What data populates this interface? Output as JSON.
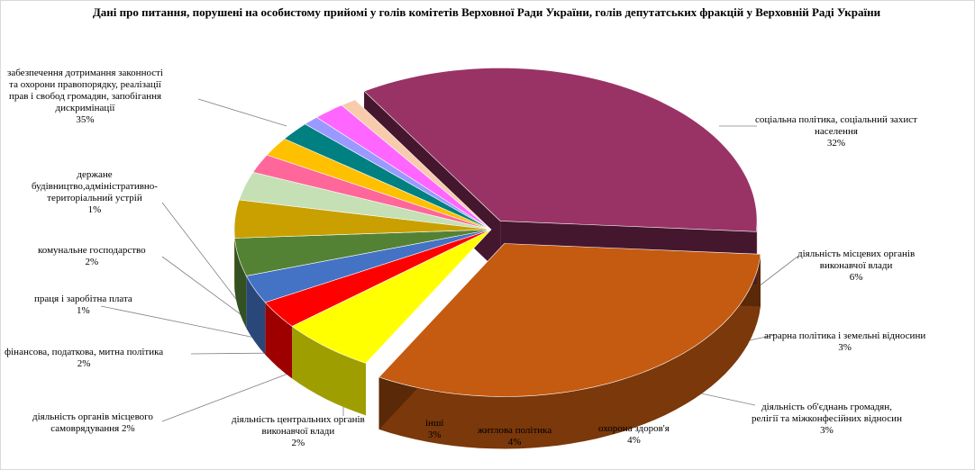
{
  "chart_data": {
    "type": "pie",
    "style": "3d-exploded",
    "title": "Дані про питання, порушені на особистому прийомі у голів комітетів Верховної Ради України, голів депутатських фракцій у Верховній Раді України",
    "slices": [
      {
        "label": "соціальна політика, соціальний захист населення",
        "value": 32,
        "display": "32%",
        "color": "#C55A11"
      },
      {
        "label": "діяльність місцевих органів виконавчої влади",
        "value": 6,
        "display": "6%",
        "color": "#FFFF00"
      },
      {
        "label": "аграрна політика і земельні відносини",
        "value": 3,
        "display": "3%",
        "color": "#FF0000"
      },
      {
        "label": "діяльність об'єднань громадян, релігії та міжконфесійних відносин",
        "value": 3,
        "display": "3%",
        "color": "#4472C4"
      },
      {
        "label": "охорона здоров'я",
        "value": 4,
        "display": "4%",
        "color": "#548235"
      },
      {
        "label": "житлова політика",
        "value": 4,
        "display": "4%",
        "color": "#C9A000"
      },
      {
        "label": "інші",
        "value": 3,
        "display": "3%",
        "color": "#C5E0B4"
      },
      {
        "label": "діяльність центральних органів виконавчої влади",
        "value": 2,
        "display": "2%",
        "color": "#FF6699"
      },
      {
        "label": "діяльність органів місцевого самоврядування",
        "value": 2,
        "display": "2%",
        "color": "#FFC000"
      },
      {
        "label": "фінансова, податкова, митна політика",
        "value": 2,
        "display": "2%",
        "color": "#008080"
      },
      {
        "label": "праця і заробітна плата",
        "value": 1,
        "display": "1%",
        "color": "#9999FF"
      },
      {
        "label": "комунальне господарство",
        "value": 2,
        "display": "2%",
        "color": "#FF66FF"
      },
      {
        "label": "державне будівництво,адміністративно-територіальний устрій",
        "value": 1,
        "display": "1%",
        "color": "#F8CBAD"
      },
      {
        "label": "забезпечення дотримання законності та охорони правопорядку, реалізації прав і свобод громадян, запобігання дискримінації",
        "value": 35,
        "display": "35%",
        "color": "#993366"
      }
    ]
  },
  "labels": {
    "social": {
      "l1": "соціальна політика, соціальний захист",
      "l2": "населення",
      "pct": "32%"
    },
    "local_exec": {
      "l1": "діяльність  місцевих органів",
      "l2": "виконавчої влади",
      "pct": "6%"
    },
    "agrarian": {
      "l1": "аграрна політика і земельні відносини",
      "pct": "3%"
    },
    "associations": {
      "l1": "діяльність  об'єднань громадян,",
      "l2": "релігії та міжконфесійних відносин",
      "pct": "3%"
    },
    "health": {
      "l1": "охорона здоров'я",
      "pct": "4%"
    },
    "housing": {
      "l1": "житлова політика",
      "pct": "4%"
    },
    "other": {
      "l1": "інші",
      "pct": "3%"
    },
    "central_exec": {
      "l1": "діяльність центральних органів",
      "l2": "виконавчої влади",
      "pct": "2%"
    },
    "self_gov": {
      "l1": "діяльність  органів місцевого",
      "l2": "самоврядування 2%"
    },
    "finance": {
      "l1": "фінансова, податкова, митна політика",
      "pct": "2%"
    },
    "labour": {
      "l1": "праця і заробітна плата",
      "pct": "1%"
    },
    "communal": {
      "l1": "комунальне господарство",
      "pct": "2%"
    },
    "state_building": {
      "l1": "держане",
      "l2": "будівництво,адміністративно-",
      "l3": "територіальний устрій",
      "pct": "1%"
    },
    "legality": {
      "l1": "забезпечення дотримання законності",
      "l2": "та охорони правопорядку, реалізації",
      "l3": "прав і свобод громадян, запобігання",
      "l4": "дискримінації",
      "pct": "35%"
    }
  }
}
